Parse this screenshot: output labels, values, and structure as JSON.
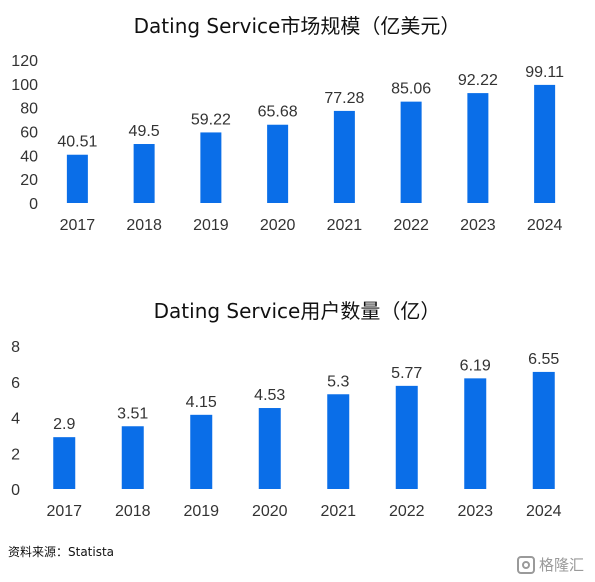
{
  "chart_data": [
    {
      "type": "bar",
      "title": "Dating Service市场规模（亿美元）",
      "categories": [
        "2017",
        "2018",
        "2019",
        "2020",
        "2021",
        "2022",
        "2023",
        "2024"
      ],
      "values": [
        40.51,
        49.5,
        59.22,
        65.68,
        77.28,
        85.06,
        92.22,
        99.11
      ],
      "ylim": [
        0,
        120
      ],
      "yticks": [
        0,
        20,
        40,
        60,
        80,
        100,
        120
      ],
      "bar_color": "#0a6ee8",
      "grid": false
    },
    {
      "type": "bar",
      "title": "Dating Service用户数量（亿）",
      "categories": [
        "2017",
        "2018",
        "2019",
        "2020",
        "2021",
        "2022",
        "2023",
        "2024"
      ],
      "values": [
        2.9,
        3.51,
        4.15,
        4.53,
        5.3,
        5.77,
        6.19,
        6.55
      ],
      "ylim": [
        0,
        8
      ],
      "yticks": [
        0,
        2,
        4,
        6,
        8
      ],
      "bar_color": "#0a6ee8",
      "grid": false
    }
  ],
  "source": "资料来源：Statista",
  "watermark": {
    "icon": "gelonghui-logo-icon",
    "text": "格隆汇"
  }
}
